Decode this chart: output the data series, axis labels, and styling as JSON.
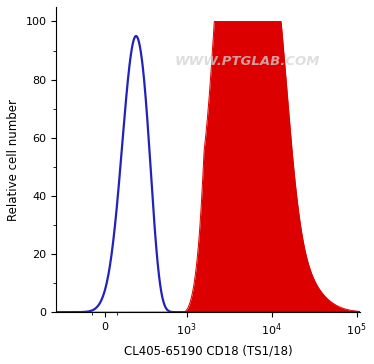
{
  "title": "",
  "xlabel": "CL405-65190 CD18 (TS1/18)",
  "ylabel": "Relative cell number",
  "watermark": "WWW.PTGLAB.COM",
  "ylim": [
    0,
    105
  ],
  "yticks": [
    0,
    20,
    40,
    60,
    80,
    100
  ],
  "blue_color": "#2222bb",
  "red_color": "#dd0000",
  "background_color": "#ffffff",
  "linthresh": 300,
  "linscale": 0.4
}
